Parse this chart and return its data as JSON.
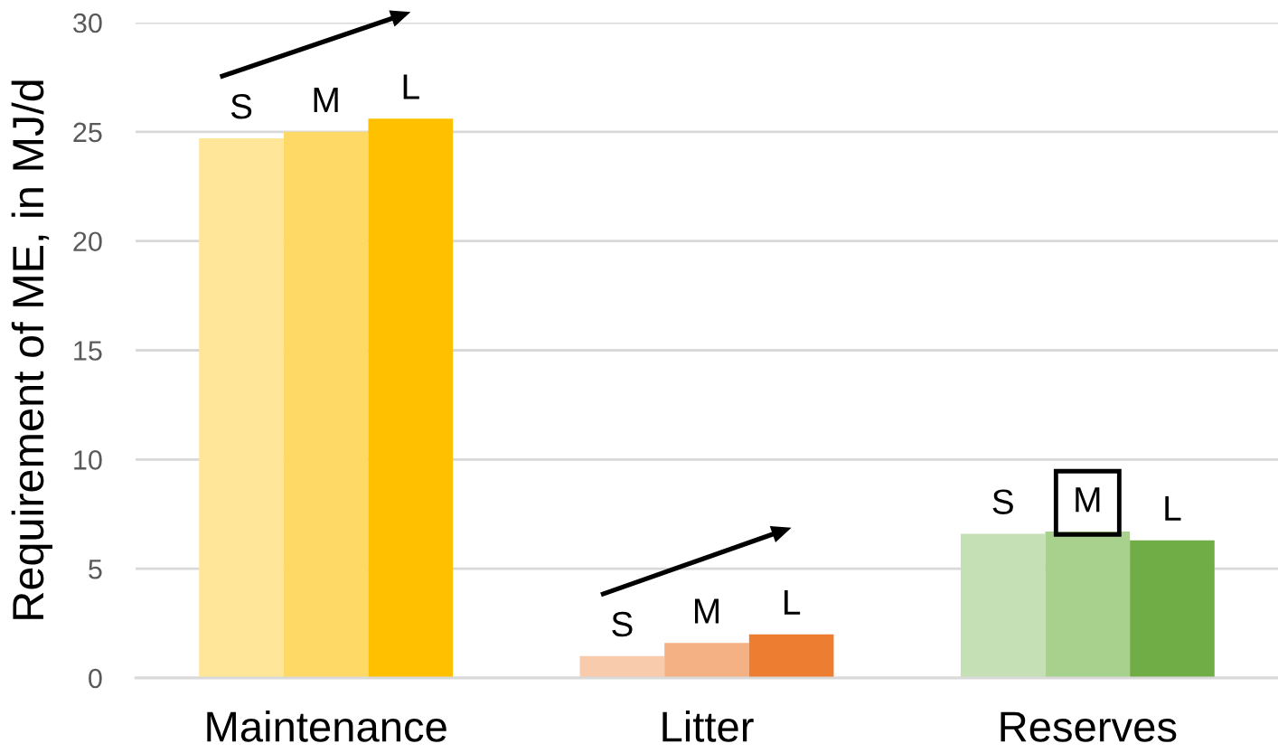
{
  "chart_data": {
    "type": "bar",
    "ylabel": "Requirement of ME, in MJ/d",
    "categories": [
      "Maintenance",
      "Litter",
      "Reserves"
    ],
    "series": [
      {
        "name": "S",
        "colors": [
          "#ffe699",
          "#f8cbad",
          "#c5e0b4"
        ],
        "values": [
          24.7,
          1.0,
          6.6
        ]
      },
      {
        "name": "M",
        "colors": [
          "#ffd966",
          "#f4b183",
          "#a9d18e"
        ],
        "values": [
          25.0,
          1.6,
          6.7
        ]
      },
      {
        "name": "L",
        "colors": [
          "#ffc000",
          "#ed7d31",
          "#70ad47"
        ],
        "values": [
          25.6,
          2.0,
          6.3
        ]
      }
    ],
    "ylim": [
      0,
      30
    ],
    "yticks": [
      0,
      5,
      10,
      15,
      20,
      25,
      30
    ],
    "grid": "y",
    "legend": false
  }
}
